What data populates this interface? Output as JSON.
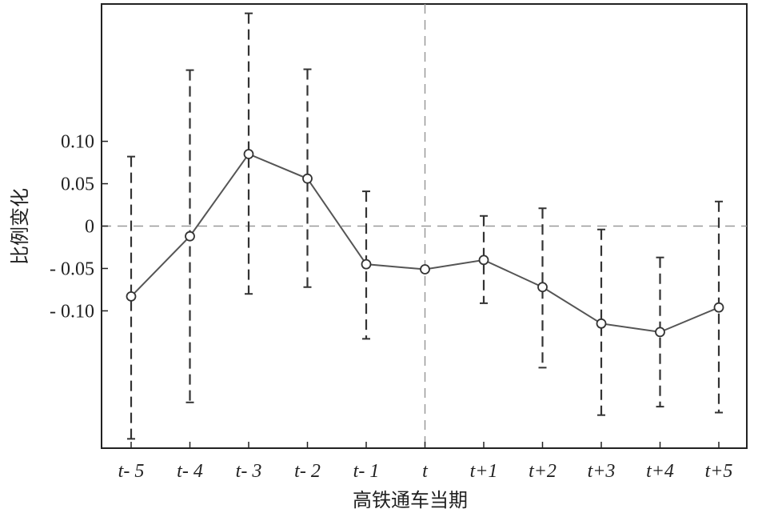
{
  "chart_data": {
    "type": "line",
    "title": "",
    "xlabel": "高铁通车当期",
    "ylabel": "比例变化",
    "categories": [
      "t- 5",
      "t- 4",
      "t- 3",
      "t- 2",
      "t- 1",
      "t",
      "t+1",
      "t+2",
      "t+3",
      "t+4",
      "t+5"
    ],
    "yticks": [
      {
        "value": 0.1,
        "label": "0.10"
      },
      {
        "value": 0.05,
        "label": "0.05"
      },
      {
        "value": 0,
        "label": "0"
      },
      {
        "value": -0.05,
        "label": "- 0.05"
      },
      {
        "value": -0.1,
        "label": "- 0.10"
      }
    ],
    "ylim": [
      -0.262,
      0.262
    ],
    "series": [
      {
        "values": [
          -0.083,
          -0.012,
          0.085,
          0.056,
          -0.045,
          -0.051,
          -0.04,
          -0.072,
          -0.115,
          -0.125,
          -0.096
        ],
        "lower": [
          -0.251,
          -0.208,
          -0.08,
          -0.072,
          -0.133,
          null,
          -0.091,
          -0.167,
          -0.223,
          -0.213,
          -0.22
        ],
        "upper": [
          0.082,
          0.184,
          0.251,
          0.185,
          0.041,
          null,
          0.012,
          0.021,
          -0.004,
          -0.037,
          0.029
        ]
      }
    ],
    "reference_lines": {
      "y": 0,
      "x_category": "t"
    },
    "grid": false,
    "colors": {
      "line": "#555555",
      "error_bar": "#333333",
      "reference": "#999999",
      "axis": "#222222"
    }
  }
}
